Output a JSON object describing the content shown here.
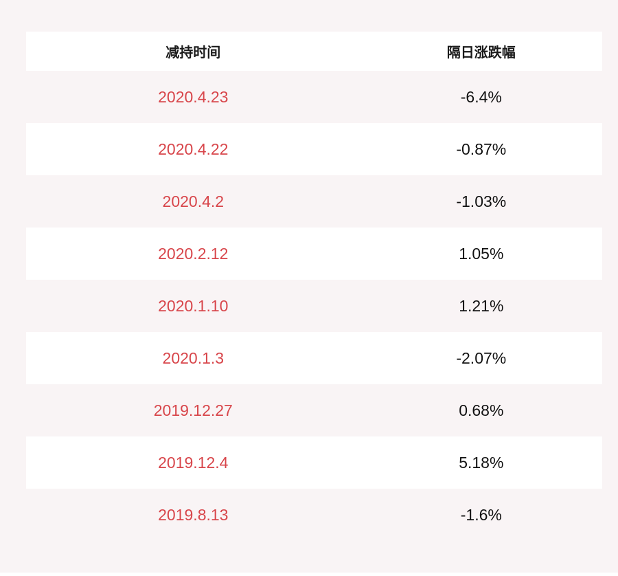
{
  "page": {
    "background_color": "#f9f4f5",
    "row_white_color": "#ffffff",
    "date_text_color": "#d8464b",
    "value_text_color": "#111111"
  },
  "table": {
    "headers": [
      {
        "label": "减持时间"
      },
      {
        "label": "隔日涨跌幅"
      }
    ],
    "rows": [
      {
        "date": "2020.4.23",
        "change": "-6.4%"
      },
      {
        "date": "2020.4.22",
        "change": "-0.87%"
      },
      {
        "date": "2020.4.2",
        "change": "-1.03%"
      },
      {
        "date": "2020.2.12",
        "change": "1.05%"
      },
      {
        "date": "2020.1.10",
        "change": "1.21%"
      },
      {
        "date": "2020.1.3",
        "change": "-2.07%"
      },
      {
        "date": "2019.12.27",
        "change": "0.68%"
      },
      {
        "date": "2019.12.4",
        "change": "5.18%"
      },
      {
        "date": "2019.8.13",
        "change": "-1.6%"
      }
    ]
  },
  "chart_data": {
    "type": "table",
    "title": "",
    "columns": [
      "减持时间",
      "隔日涨跌幅"
    ],
    "rows": [
      [
        "2020.4.23",
        -6.4
      ],
      [
        "2020.4.22",
        -0.87
      ],
      [
        "2020.4.2",
        -1.03
      ],
      [
        "2020.2.12",
        1.05
      ],
      [
        "2020.1.10",
        1.21
      ],
      [
        "2020.1.3",
        -2.07
      ],
      [
        "2019.12.27",
        0.68
      ],
      [
        "2019.12.4",
        5.18
      ],
      [
        "2019.8.13",
        -1.6
      ]
    ],
    "value_unit": "%",
    "layout": "two-column centered table, alternating white/pink row stripes, dates in red, values in black"
  }
}
